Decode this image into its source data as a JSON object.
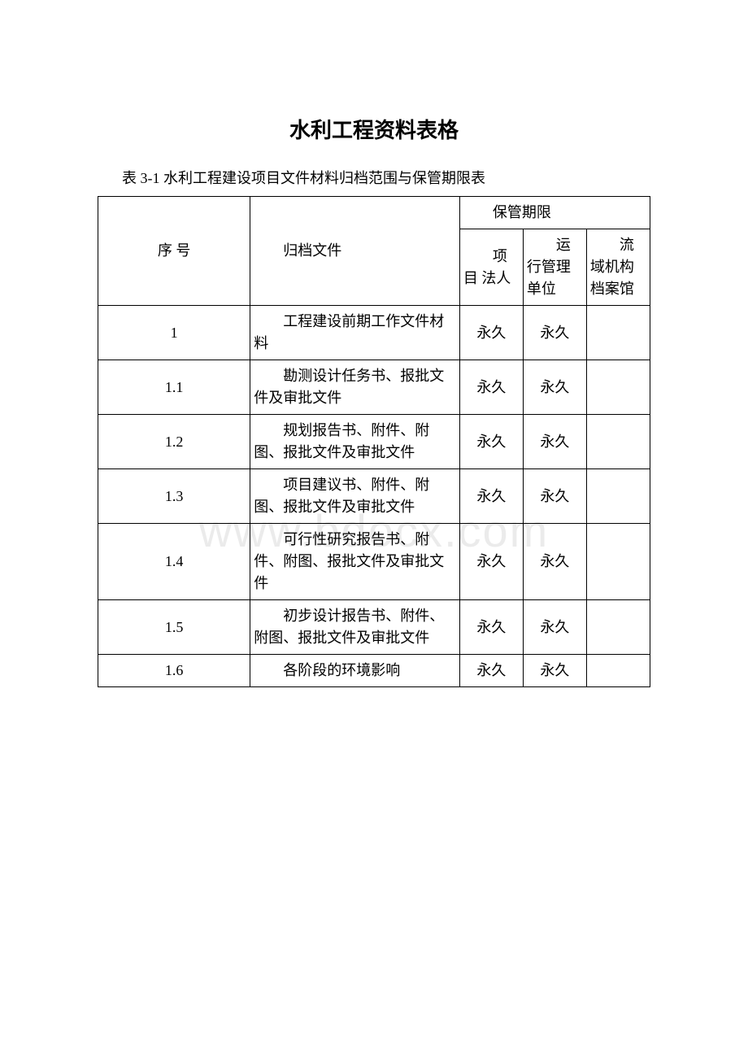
{
  "title": "水利工程资料表格",
  "subtitle": "表 3-1  水利工程建设项目文件材料归档范围与保管期限表",
  "watermark": "www.bdocx.com",
  "header": {
    "seq": "序 号",
    "file": "归档文件",
    "period": "保管期限",
    "sub1": "项目 法人",
    "sub2": "运行管理 单位",
    "sub3": "流域机构档案馆"
  },
  "rows": [
    {
      "seq": "1",
      "file": "工程建设前期工作文件材料",
      "c1": "永久",
      "c2": "永久",
      "c3": ""
    },
    {
      "seq": "1.1",
      "file": "勘测设计任务书、报批文件及审批文件",
      "c1": "永久",
      "c2": "永久",
      "c3": ""
    },
    {
      "seq": "1.2",
      "file": "规划报告书、附件、附图、报批文件及审批文件",
      "c1": "永久",
      "c2": "永久",
      "c3": ""
    },
    {
      "seq": "1.3",
      "file": "项目建议书、附件、附图、报批文件及审批文件",
      "c1": "永久",
      "c2": "永久",
      "c3": ""
    },
    {
      "seq": "1.4",
      "file": "可行性研究报告书、附件、附图、报批文件及审批文件",
      "c1": "永久",
      "c2": "永久",
      "c3": ""
    },
    {
      "seq": "1.5",
      "file": "初步设计报告书、附件、附图、报批文件及审批文件",
      "c1": "永久",
      "c2": "永久",
      "c3": ""
    },
    {
      "seq": "1.6",
      "file": "各阶段的环境影响",
      "c1": "永久",
      "c2": "永久",
      "c3": ""
    }
  ]
}
